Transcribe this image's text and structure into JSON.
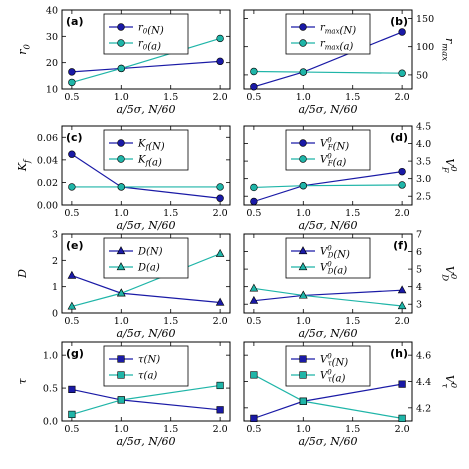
{
  "colors": {
    "N": "#1a1aa6",
    "a": "#1fb5a8"
  },
  "chart_data": [
    {
      "type": "line",
      "panel_label": "(a)",
      "ylabel": "r0",
      "ylabel_sub": "0",
      "y_axis_side": "left",
      "ylim": [
        10,
        40
      ],
      "yticks": [
        10,
        20,
        30,
        40
      ],
      "ytick_labels": [
        "10",
        "20",
        "30",
        "40"
      ],
      "marker": "circle",
      "legend_position": "top-center",
      "x": [
        0.5,
        1.0,
        2.0
      ],
      "series": [
        {
          "name": "r0(N)",
          "name_main": "r",
          "name_sub": "0",
          "name_arg": "(N)",
          "color_key": "N",
          "values": [
            16.5,
            17.8,
            20.5
          ]
        },
        {
          "name": "r0(a)",
          "name_main": "r",
          "name_sub": "0",
          "name_arg": "(a)",
          "color_key": "a",
          "values": [
            12.5,
            17.8,
            29.2
          ]
        }
      ]
    },
    {
      "type": "line",
      "panel_label": "(b)",
      "ylabel": "rmax",
      "ylabel_sub": "max",
      "y_axis_side": "right",
      "ylim": [
        25,
        165
      ],
      "yticks": [
        50,
        100,
        150
      ],
      "ytick_labels": [
        "50",
        "100",
        "150"
      ],
      "marker": "circle",
      "legend_position": "top-center",
      "x": [
        0.5,
        1.0,
        2.0
      ],
      "series": [
        {
          "name": "rmax(N)",
          "name_main": "r",
          "name_sub": "max",
          "name_arg": "(N)",
          "color_key": "N",
          "values": [
            29,
            55,
            126
          ]
        },
        {
          "name": "rmax(a)",
          "name_main": "r",
          "name_sub": "max",
          "name_arg": "(a)",
          "color_key": "a",
          "values": [
            56,
            55,
            53
          ]
        }
      ]
    },
    {
      "type": "line",
      "panel_label": "(c)",
      "ylabel": "Kf",
      "ylabel_sub": "f",
      "y_axis_side": "left",
      "ylim": [
        0.0,
        0.07
      ],
      "yticks": [
        0.0,
        0.02,
        0.04,
        0.06
      ],
      "ytick_labels": [
        "0.00",
        "0.02",
        "0.04",
        "0.06"
      ],
      "marker": "circle",
      "legend_position": "top-center",
      "x": [
        0.5,
        1.0,
        2.0
      ],
      "series": [
        {
          "name": "Kf(N)",
          "name_main": "K",
          "name_sub": "f",
          "name_arg": "(N)",
          "color_key": "N",
          "values": [
            0.045,
            0.016,
            0.006
          ]
        },
        {
          "name": "Kf(a)",
          "name_main": "K",
          "name_sub": "f",
          "name_arg": "(a)",
          "color_key": "a",
          "values": [
            0.016,
            0.016,
            0.016
          ]
        }
      ]
    },
    {
      "type": "line",
      "panel_label": "(d)",
      "ylabel": "VF0",
      "ylabel_sub": "F",
      "ylabel_sup": "0",
      "y_axis_side": "right",
      "ylim": [
        2.25,
        4.5
      ],
      "yticks": [
        2.5,
        3.0,
        3.5,
        4.0,
        4.5
      ],
      "ytick_labels": [
        "2.5",
        "3.0",
        "3.5",
        "4.0",
        "4.5"
      ],
      "marker": "circle",
      "legend_position": "top-center",
      "x": [
        0.5,
        1.0,
        2.0
      ],
      "series": [
        {
          "name": "VF0(N)",
          "name_main": "V",
          "name_sub": "F",
          "name_sup": "0",
          "name_arg": "(N)",
          "color_key": "N",
          "values": [
            2.35,
            2.8,
            3.2
          ]
        },
        {
          "name": "VF0(a)",
          "name_main": "V",
          "name_sub": "F",
          "name_sup": "0",
          "name_arg": "(a)",
          "color_key": "a",
          "values": [
            2.75,
            2.8,
            2.82
          ]
        }
      ]
    },
    {
      "type": "line",
      "panel_label": "(e)",
      "ylabel": "D",
      "y_axis_side": "left",
      "ylim": [
        0,
        3
      ],
      "yticks": [
        0,
        1,
        2,
        3
      ],
      "ytick_labels": [
        "0",
        "1",
        "2",
        "3"
      ],
      "marker": "triangle",
      "legend_position": "top-center",
      "x": [
        0.5,
        1.0,
        2.0
      ],
      "series": [
        {
          "name": "D(N)",
          "name_main": "D",
          "name_arg": "(N)",
          "color_key": "N",
          "values": [
            1.42,
            0.75,
            0.4
          ]
        },
        {
          "name": "D(a)",
          "name_main": "D",
          "name_arg": "(a)",
          "color_key": "a",
          "values": [
            0.25,
            0.75,
            2.25
          ]
        }
      ]
    },
    {
      "type": "line",
      "panel_label": "(f)",
      "ylabel": "VD0",
      "ylabel_sub": "D",
      "ylabel_sup": "0",
      "y_axis_side": "right",
      "ylim": [
        2.5,
        7
      ],
      "yticks": [
        3,
        4,
        5,
        6,
        7
      ],
      "ytick_labels": [
        "3",
        "4",
        "5",
        "6",
        "7"
      ],
      "marker": "triangle",
      "legend_position": "top-center",
      "x": [
        0.5,
        1.0,
        2.0
      ],
      "series": [
        {
          "name": "VD0(N)",
          "name_main": "V",
          "name_sub": "D",
          "name_sup": "0",
          "name_arg": "(N)",
          "color_key": "N",
          "values": [
            3.2,
            3.5,
            3.8
          ]
        },
        {
          "name": "VD0(a)",
          "name_main": "V",
          "name_sub": "D",
          "name_sup": "0",
          "name_arg": "(a)",
          "color_key": "a",
          "values": [
            3.9,
            3.5,
            2.9
          ]
        }
      ]
    },
    {
      "type": "line",
      "panel_label": "(g)",
      "ylabel": "τ",
      "y_axis_side": "left",
      "ylim": [
        0,
        1.2
      ],
      "yticks": [
        0.0,
        0.5,
        1.0
      ],
      "ytick_labels": [
        "0.0",
        "0.5",
        "1.0"
      ],
      "marker": "square",
      "legend_position": "top-center",
      "x": [
        0.5,
        1.0,
        2.0
      ],
      "series": [
        {
          "name": "τ(N)",
          "name_main": "τ",
          "name_arg": "(N)",
          "color_key": "N",
          "values": [
            0.48,
            0.32,
            0.17
          ]
        },
        {
          "name": "τ(a)",
          "name_main": "τ",
          "name_arg": "(a)",
          "color_key": "a",
          "values": [
            0.1,
            0.32,
            0.54
          ]
        }
      ]
    },
    {
      "type": "line",
      "panel_label": "(h)",
      "ylabel": "Vτ0",
      "ylabel_sub": "τ",
      "ylabel_sup": "0",
      "y_axis_side": "right",
      "ylim": [
        4.1,
        4.7
      ],
      "yticks": [
        4.2,
        4.4,
        4.6
      ],
      "ytick_labels": [
        "4.2",
        "4.4",
        "4.6"
      ],
      "marker": "square",
      "legend_position": "top-center",
      "x": [
        0.5,
        1.0,
        2.0
      ],
      "series": [
        {
          "name": "Vτ0(N)",
          "name_main": "V",
          "name_sub": "τ",
          "name_sup": "0",
          "name_arg": "(N)",
          "color_key": "N",
          "values": [
            4.12,
            4.25,
            4.38
          ]
        },
        {
          "name": "Vτ0(a)",
          "name_main": "V",
          "name_sub": "τ",
          "name_sup": "0",
          "name_arg": "(a)",
          "color_key": "a",
          "values": [
            4.45,
            4.25,
            4.12
          ]
        }
      ]
    }
  ],
  "shared_x": {
    "xlim": [
      0.4,
      2.1
    ],
    "xticks": [
      0.5,
      1.0,
      1.5,
      2.0
    ],
    "xtick_labels": [
      "0.5",
      "1.0",
      "1.5",
      "2.0"
    ],
    "xlabel": "a/5σ, N/60"
  }
}
